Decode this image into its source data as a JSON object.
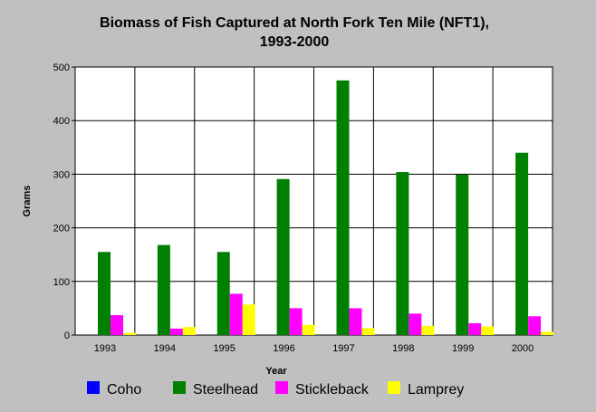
{
  "chart_data": {
    "type": "bar",
    "title": "Biomass of Fish Captured at North Fork Ten Mile (NFT1),",
    "subtitle": "1993-2000",
    "xlabel": "Year",
    "ylabel": "Grams",
    "ylim": [
      0,
      500
    ],
    "yticks": [
      0,
      100,
      200,
      300,
      400,
      500
    ],
    "categories": [
      "1993",
      "1994",
      "1995",
      "1996",
      "1997",
      "1998",
      "1999",
      "2000"
    ],
    "series": [
      {
        "name": "Coho",
        "color": "#0000ff",
        "values": [
          0,
          0,
          0,
          0,
          0,
          0,
          0,
          0
        ]
      },
      {
        "name": "Steelhead",
        "color": "#008000",
        "values": [
          155,
          168,
          155,
          291,
          475,
          304,
          299,
          340
        ]
      },
      {
        "name": "Stickleback",
        "color": "#ff00ff",
        "values": [
          37,
          12,
          77,
          50,
          50,
          40,
          22,
          35
        ]
      },
      {
        "name": "Lamprey",
        "color": "#ffff00",
        "values": [
          4,
          15,
          57,
          19,
          13,
          17,
          16,
          6
        ]
      }
    ],
    "grid": true,
    "legend_position": "bottom"
  }
}
